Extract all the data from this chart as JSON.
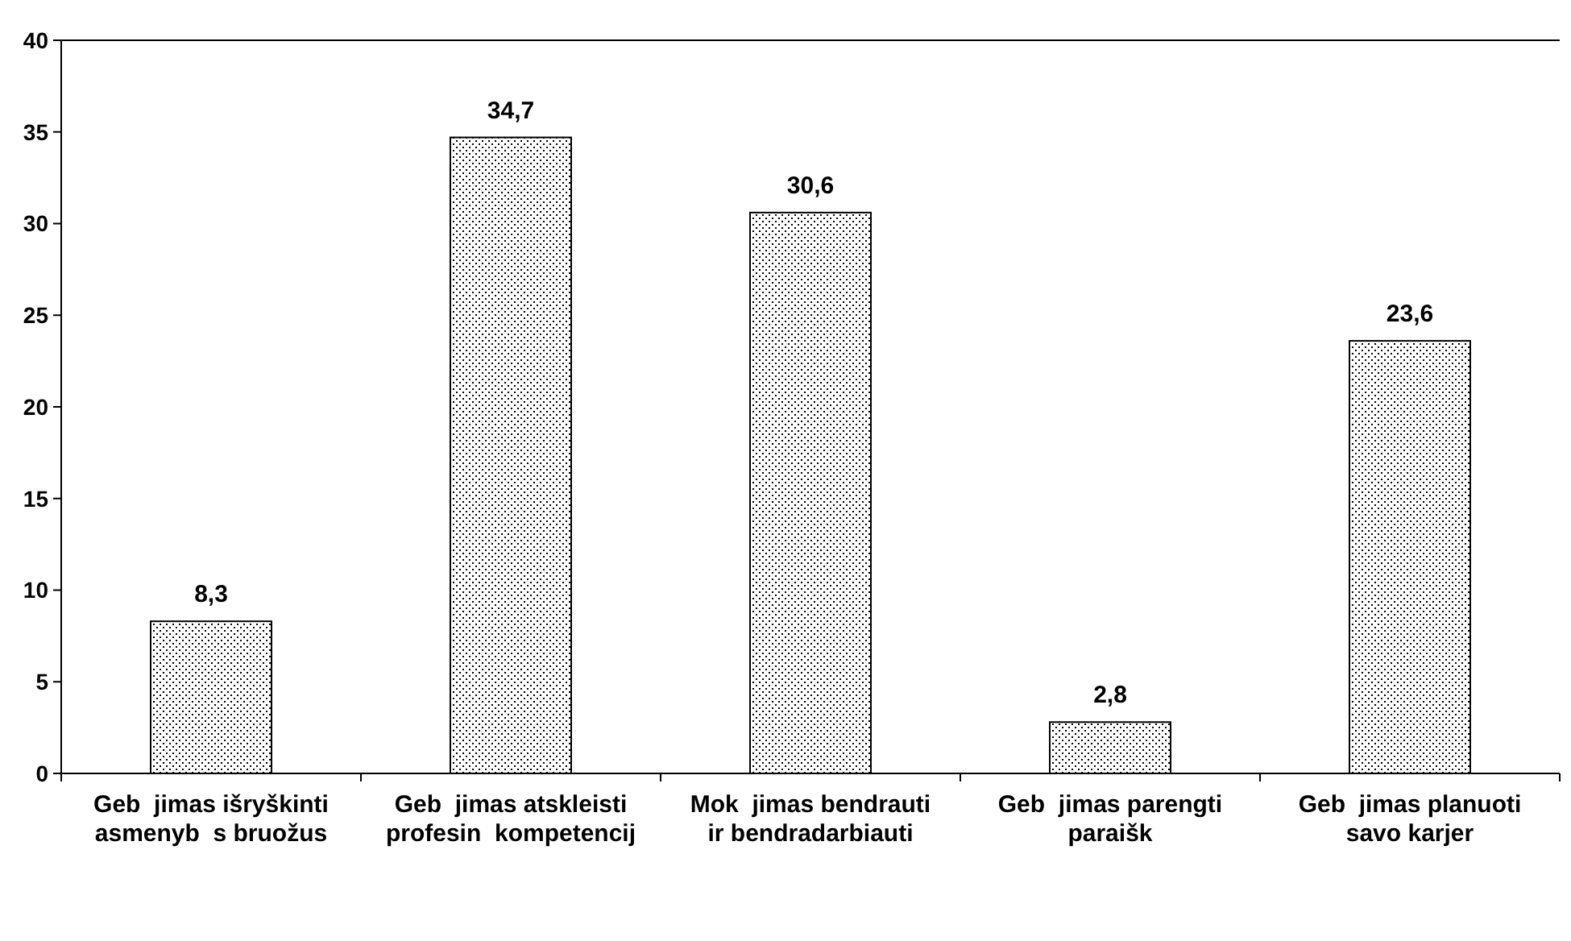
{
  "chart_data": {
    "type": "bar",
    "categories": [
      "Geb  jimas išryškinti asmenyb  s bruožus",
      "Geb  jimas atskleisti profesin  kompetencij",
      "Mok  jimas bendrauti ir bendradarbiauti",
      "Geb  jimas parengti paraišk",
      "Geb  jimas planuoti savo karjer"
    ],
    "values": [
      8.3,
      34.7,
      30.6,
      2.8,
      23.6
    ],
    "color": "#000000",
    "ylim": [
      0,
      40
    ],
    "yticks": [
      0,
      5,
      10,
      15,
      20,
      25,
      30,
      35,
      40
    ],
    "data_labels": true,
    "value_labels": [
      "8,3",
      "34,7",
      "30,6",
      "2,8",
      "23,6"
    ],
    "grid": false
  }
}
